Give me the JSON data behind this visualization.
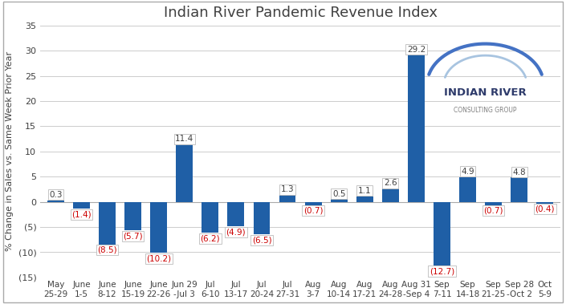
{
  "title": "Indian River Pandemic Revenue Index",
  "ylabel": "% Change in Sales vs. Same Week Prior Year",
  "categories": [
    "May\n25-29",
    "June\n1-5",
    "June\n8-12",
    "June\n15-19",
    "June\n22-26",
    "Jun 29\n-Jul 3",
    "Jul\n6-10",
    "Jul\n13-17",
    "Jul\n20-24",
    "Jul\n27-31",
    "Aug\n3-7",
    "Aug\n10-14",
    "Aug\n17-21",
    "Aug\n24-28",
    "Aug 31\n-Sep 4",
    "Sep\n7-11",
    "Sep\n14-18",
    "Sep\n21-25",
    "Sep 28\n-Oct 2",
    "Oct\n5-9"
  ],
  "values": [
    0.3,
    -1.4,
    -8.5,
    -5.7,
    -10.2,
    11.4,
    -6.2,
    -4.9,
    -6.5,
    1.3,
    -0.7,
    0.5,
    1.1,
    2.6,
    29.2,
    -12.7,
    4.9,
    -0.7,
    4.8,
    -0.4
  ],
  "bar_color": "#1F5FA6",
  "label_color_positive": "#404040",
  "label_color_negative": "#CC0000",
  "ylim": [
    -15,
    35
  ],
  "yticks": [
    -15,
    -10,
    -5,
    0,
    5,
    10,
    15,
    20,
    25,
    30,
    35
  ],
  "ytick_labels": [
    "(15)",
    "(10)",
    "(5)",
    "0",
    "5",
    "10",
    "15",
    "20",
    "25",
    "30",
    "35"
  ],
  "background_color": "#FFFFFF",
  "grid_color": "#CCCCCC",
  "title_fontsize": 13,
  "label_fontsize": 7.5,
  "tick_fontsize": 8,
  "logo_line1": "INDIAN RIVER",
  "logo_line2": "CONSULTING GROUP",
  "logo_color1": "#2E3B6B",
  "logo_color2": "#808080",
  "arc_color1": "#4472C4",
  "arc_color2": "#A8C4E0"
}
